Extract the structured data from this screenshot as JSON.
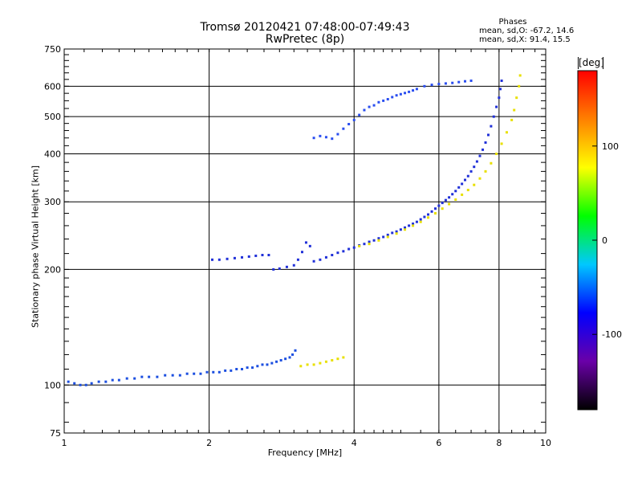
{
  "chart_data": {
    "type": "scatter",
    "title": "Tromsø 20120421 07:48:00-07:49:43",
    "subtitle": "RwPretec (8p)",
    "xlabel": "Frequency [MHz]",
    "ylabel": "Stationary phase Virtual Height [km]",
    "x_scale": "log",
    "y_scale": "log",
    "xlim": [
      1,
      10
    ],
    "ylim": [
      75,
      750
    ],
    "x_ticks": [
      1,
      2,
      4,
      6,
      8,
      10
    ],
    "x_tick_labels": [
      "1",
      "2",
      "4",
      "6",
      "8",
      "10"
    ],
    "y_ticks": [
      75,
      100,
      200,
      300,
      400,
      500,
      600,
      750
    ],
    "y_tick_labels": [
      "75",
      "100",
      "200",
      "300",
      "400",
      "500",
      "600",
      "750"
    ],
    "grid": true,
    "phases_header": "Phases",
    "phases_o": "mean, sd,O: -67.2, 14.6",
    "phases_x": "mean, sd,X:  91.4, 15.5",
    "colorbar": {
      "unit": "[deg]",
      "ticks": [
        100,
        0,
        -100
      ],
      "tick_labels": [
        "100",
        "0",
        "-100"
      ],
      "range": [
        -180,
        180
      ],
      "colors": [
        "#000000",
        "#6a00a8",
        "#0000ff",
        "#00c8ff",
        "#00ff00",
        "#ffff00",
        "#ff8000",
        "#ff0000"
      ]
    },
    "series": [
      {
        "color": "#1c4fe0",
        "points": [
          [
            1.02,
            102
          ],
          [
            1.05,
            101
          ],
          [
            1.08,
            100
          ],
          [
            1.11,
            100
          ],
          [
            1.14,
            101
          ],
          [
            1.18,
            102
          ],
          [
            1.22,
            102
          ],
          [
            1.26,
            103
          ],
          [
            1.3,
            103
          ],
          [
            1.35,
            104
          ],
          [
            1.4,
            104
          ],
          [
            1.45,
            105
          ],
          [
            1.5,
            105
          ],
          [
            1.56,
            105
          ],
          [
            1.62,
            106
          ],
          [
            1.68,
            106
          ],
          [
            1.74,
            106
          ],
          [
            1.8,
            107
          ],
          [
            1.86,
            107
          ],
          [
            1.92,
            107
          ],
          [
            1.98,
            108
          ],
          [
            2.04,
            108
          ],
          [
            2.1,
            108
          ],
          [
            2.16,
            109
          ],
          [
            2.22,
            109
          ],
          [
            2.28,
            110
          ],
          [
            2.34,
            110
          ],
          [
            2.4,
            111
          ],
          [
            2.46,
            111
          ],
          [
            2.52,
            112
          ],
          [
            2.58,
            113
          ],
          [
            2.64,
            113
          ],
          [
            2.7,
            114
          ],
          [
            2.76,
            115
          ],
          [
            2.82,
            116
          ],
          [
            2.88,
            117
          ],
          [
            2.94,
            118
          ],
          [
            2.98,
            120
          ],
          [
            3.02,
            123
          ]
        ]
      },
      {
        "color": "#2030d8",
        "points": [
          [
            2.03,
            212
          ],
          [
            2.1,
            212
          ],
          [
            2.18,
            213
          ],
          [
            2.26,
            214
          ],
          [
            2.34,
            215
          ],
          [
            2.42,
            216
          ],
          [
            2.5,
            217
          ],
          [
            2.58,
            218
          ],
          [
            2.66,
            218
          ],
          [
            2.72,
            200
          ],
          [
            2.8,
            201
          ],
          [
            2.9,
            203
          ],
          [
            3.0,
            205
          ],
          [
            3.06,
            212
          ],
          [
            3.12,
            222
          ],
          [
            3.18,
            235
          ],
          [
            3.24,
            230
          ],
          [
            3.3,
            210
          ],
          [
            3.4,
            212
          ],
          [
            3.5,
            215
          ],
          [
            3.6,
            218
          ],
          [
            3.7,
            221
          ],
          [
            3.8,
            223
          ],
          [
            3.9,
            226
          ],
          [
            4.0,
            228
          ],
          [
            4.1,
            231
          ],
          [
            4.2,
            233
          ],
          [
            4.3,
            236
          ],
          [
            4.4,
            238
          ],
          [
            4.5,
            241
          ],
          [
            4.6,
            243
          ],
          [
            4.7,
            246
          ],
          [
            4.8,
            249
          ],
          [
            4.9,
            251
          ],
          [
            5.0,
            254
          ],
          [
            5.1,
            257
          ],
          [
            5.2,
            260
          ],
          [
            5.3,
            263
          ],
          [
            5.4,
            266
          ],
          [
            5.5,
            270
          ],
          [
            5.6,
            274
          ],
          [
            5.7,
            278
          ],
          [
            5.8,
            283
          ],
          [
            5.9,
            288
          ],
          [
            6.0,
            293
          ],
          [
            6.1,
            298
          ],
          [
            6.2,
            303
          ],
          [
            6.3,
            308
          ],
          [
            6.4,
            314
          ],
          [
            6.5,
            320
          ],
          [
            6.6,
            327
          ],
          [
            6.7,
            334
          ],
          [
            6.8,
            342
          ],
          [
            6.9,
            350
          ],
          [
            7.0,
            360
          ],
          [
            7.1,
            370
          ],
          [
            7.2,
            382
          ],
          [
            7.3,
            395
          ],
          [
            7.4,
            410
          ],
          [
            7.5,
            428
          ],
          [
            7.6,
            448
          ],
          [
            7.7,
            472
          ],
          [
            7.8,
            500
          ],
          [
            7.9,
            530
          ],
          [
            8.0,
            560
          ],
          [
            8.05,
            590
          ],
          [
            8.1,
            620
          ]
        ]
      },
      {
        "color": "#2a4ef0",
        "points": [
          [
            3.3,
            440
          ],
          [
            3.4,
            445
          ],
          [
            3.5,
            442
          ],
          [
            3.6,
            438
          ],
          [
            3.7,
            450
          ],
          [
            3.8,
            465
          ],
          [
            3.9,
            478
          ],
          [
            4.0,
            490
          ],
          [
            4.1,
            505
          ],
          [
            4.2,
            520
          ],
          [
            4.3,
            530
          ],
          [
            4.4,
            535
          ],
          [
            4.5,
            545
          ],
          [
            4.6,
            550
          ],
          [
            4.7,
            555
          ],
          [
            4.8,
            562
          ],
          [
            4.9,
            568
          ],
          [
            5.0,
            572
          ],
          [
            5.1,
            576
          ],
          [
            5.2,
            580
          ],
          [
            5.3,
            585
          ],
          [
            5.4,
            590
          ],
          [
            5.6,
            600
          ],
          [
            5.8,
            605
          ],
          [
            6.0,
            608
          ],
          [
            6.2,
            610
          ],
          [
            6.4,
            612
          ],
          [
            6.6,
            615
          ],
          [
            6.8,
            618
          ],
          [
            7.0,
            620
          ]
        ]
      },
      {
        "color": "#e8e000",
        "points": [
          [
            3.1,
            112
          ],
          [
            3.2,
            113
          ],
          [
            3.3,
            113
          ],
          [
            3.4,
            114
          ],
          [
            3.5,
            115
          ],
          [
            3.6,
            116
          ],
          [
            3.7,
            117
          ],
          [
            3.8,
            118
          ],
          [
            4.1,
            230
          ],
          [
            4.3,
            233
          ],
          [
            4.5,
            238
          ],
          [
            4.7,
            243
          ],
          [
            4.9,
            248
          ],
          [
            5.1,
            254
          ],
          [
            5.3,
            260
          ],
          [
            5.5,
            266
          ],
          [
            5.7,
            273
          ],
          [
            5.9,
            280
          ],
          [
            6.1,
            288
          ],
          [
            6.3,
            296
          ],
          [
            6.5,
            304
          ],
          [
            6.7,
            313
          ],
          [
            6.9,
            322
          ],
          [
            7.1,
            332
          ],
          [
            7.3,
            345
          ],
          [
            7.5,
            360
          ],
          [
            7.7,
            378
          ],
          [
            7.9,
            400
          ],
          [
            8.1,
            425
          ],
          [
            8.3,
            455
          ],
          [
            8.5,
            490
          ],
          [
            8.6,
            520
          ],
          [
            8.7,
            560
          ],
          [
            8.8,
            600
          ],
          [
            8.85,
            640
          ]
        ]
      }
    ]
  }
}
